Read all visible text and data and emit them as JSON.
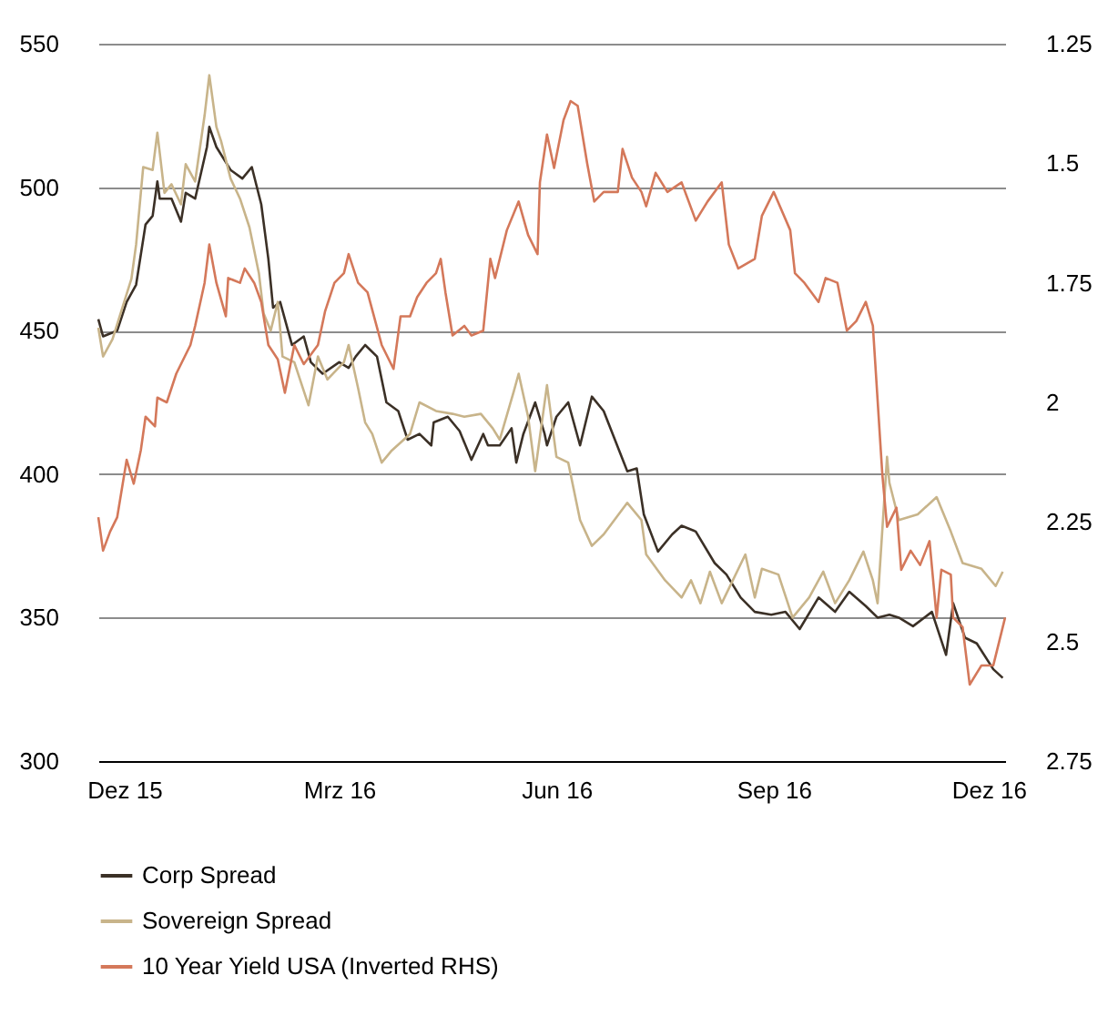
{
  "chart_data": {
    "type": "line",
    "xlim": [
      "2015-11-20",
      "2016-12-08"
    ],
    "xticks": [
      {
        "value": "2015-12-01",
        "label": "Dez 15"
      },
      {
        "value": "2016-03-01",
        "label": "Mrz 16"
      },
      {
        "value": "2016-06-01",
        "label": "Jun 16"
      },
      {
        "value": "2016-09-01",
        "label": "Sep 16"
      },
      {
        "value": "2016-12-01",
        "label": "Dez 16"
      }
    ],
    "ylim": [
      300,
      550
    ],
    "yticks": [
      300,
      350,
      400,
      450,
      500,
      550
    ],
    "y2lim": [
      2.75,
      1.25
    ],
    "y2ticks": [
      1.25,
      1.5,
      1.75,
      2,
      2.25,
      2.5,
      2.75
    ],
    "grid": "y",
    "legend": "bottom",
    "series": [
      {
        "name": "Corp Spread",
        "color": "#3b3026",
        "x": [
          "2015-11-20",
          "2015-11-22",
          "2015-11-28",
          "2015-12-02",
          "2015-12-06",
          "2015-12-10",
          "2015-12-13",
          "2015-12-15",
          "2015-12-16",
          "2015-12-21",
          "2015-12-25",
          "2015-12-27",
          "2015-12-31",
          "2016-01-05",
          "2016-01-06",
          "2016-01-09",
          "2016-01-15",
          "2016-01-20",
          "2016-01-24",
          "2016-01-28",
          "2016-01-31",
          "2016-02-02",
          "2016-02-05",
          "2016-02-10",
          "2016-02-15",
          "2016-02-18",
          "2016-02-23",
          "2016-03-01",
          "2016-03-05",
          "2016-03-08",
          "2016-03-12",
          "2016-03-17",
          "2016-03-21",
          "2016-03-26",
          "2016-03-30",
          "2016-04-04",
          "2016-04-09",
          "2016-04-10",
          "2016-04-16",
          "2016-04-21",
          "2016-04-26",
          "2016-05-01",
          "2016-05-03",
          "2016-05-08",
          "2016-05-13",
          "2016-05-15",
          "2016-05-18",
          "2016-05-23",
          "2016-05-27",
          "2016-05-28",
          "2016-06-01",
          "2016-06-06",
          "2016-06-11",
          "2016-06-16",
          "2016-06-21",
          "2016-07-01",
          "2016-07-05",
          "2016-07-08",
          "2016-07-14",
          "2016-07-20",
          "2016-07-24",
          "2016-07-30",
          "2016-08-07",
          "2016-08-12",
          "2016-08-18",
          "2016-08-24",
          "2016-08-31",
          "2016-09-06",
          "2016-09-12",
          "2016-09-20",
          "2016-09-27",
          "2016-10-03",
          "2016-10-10",
          "2016-10-15",
          "2016-10-20",
          "2016-10-24",
          "2016-10-30",
          "2016-11-07",
          "2016-11-13",
          "2016-11-16",
          "2016-11-21",
          "2016-11-26",
          "2016-12-03",
          "2016-12-07"
        ],
        "values": [
          454,
          448,
          450,
          460,
          466,
          487,
          490,
          502,
          496,
          496,
          488,
          498,
          496,
          514,
          521,
          514,
          506,
          503,
          507,
          494,
          475,
          458,
          460,
          445,
          448,
          439,
          435,
          439,
          437,
          441,
          445,
          441,
          425,
          422,
          412,
          414,
          410,
          418,
          420,
          415,
          405,
          414,
          410,
          410,
          416,
          404,
          414,
          425,
          414,
          410,
          420,
          425,
          410,
          427,
          422,
          401,
          402,
          386,
          373,
          379,
          382,
          380,
          369,
          365,
          357,
          352,
          351,
          352,
          346,
          357,
          352,
          359,
          354,
          350,
          351,
          350,
          347,
          352,
          337,
          355,
          343,
          341,
          332,
          329
        ]
      },
      {
        "name": "Sovereign Spread",
        "color": "#c8b48a",
        "x": [
          "2015-11-20",
          "2015-11-22",
          "2015-11-26",
          "2015-12-04",
          "2015-12-06",
          "2015-12-09",
          "2015-12-13",
          "2015-12-15",
          "2015-12-18",
          "2015-12-21",
          "2015-12-25",
          "2015-12-27",
          "2015-12-31",
          "2016-01-04",
          "2016-01-06",
          "2016-01-09",
          "2016-01-11",
          "2016-01-15",
          "2016-01-19",
          "2016-01-23",
          "2016-01-27",
          "2016-01-29",
          "2016-02-01",
          "2016-02-04",
          "2016-02-06",
          "2016-02-11",
          "2016-02-17",
          "2016-02-21",
          "2016-02-25",
          "2016-03-03",
          "2016-03-05",
          "2016-03-09",
          "2016-03-12",
          "2016-03-15",
          "2016-03-19",
          "2016-03-23",
          "2016-03-31",
          "2016-04-04",
          "2016-04-11",
          "2016-04-18",
          "2016-04-23",
          "2016-04-30",
          "2016-05-05",
          "2016-05-08",
          "2016-05-14",
          "2016-05-16",
          "2016-05-20",
          "2016-05-23",
          "2016-05-28",
          "2016-06-01",
          "2016-06-06",
          "2016-06-11",
          "2016-06-16",
          "2016-06-21",
          "2016-07-01",
          "2016-07-07",
          "2016-07-09",
          "2016-07-17",
          "2016-07-24",
          "2016-07-28",
          "2016-08-01",
          "2016-08-05",
          "2016-08-10",
          "2016-08-20",
          "2016-08-24",
          "2016-08-27",
          "2016-09-03",
          "2016-09-09",
          "2016-09-16",
          "2016-09-22",
          "2016-09-27",
          "2016-10-03",
          "2016-10-09",
          "2016-10-13",
          "2016-10-15",
          "2016-10-19",
          "2016-10-20",
          "2016-10-24",
          "2016-11-01",
          "2016-11-09",
          "2016-11-15",
          "2016-11-20",
          "2016-11-28",
          "2016-12-04",
          "2016-12-07"
        ],
        "values": [
          451,
          441,
          447,
          468,
          480,
          507,
          506,
          519,
          498,
          501,
          494,
          508,
          502,
          525,
          539,
          521,
          516,
          503,
          496,
          486,
          470,
          456,
          450,
          460,
          441,
          439,
          424,
          441,
          433,
          439,
          445,
          430,
          418,
          414,
          404,
          408,
          414,
          425,
          422,
          421,
          420,
          421,
          416,
          412,
          429,
          435,
          420,
          401,
          431,
          406,
          404,
          384,
          375,
          379,
          390,
          384,
          372,
          363,
          357,
          363,
          355,
          366,
          355,
          372,
          357,
          367,
          365,
          350,
          357,
          366,
          355,
          363,
          373,
          363,
          355,
          406,
          397,
          384,
          386,
          392,
          380,
          369,
          367,
          361,
          366
        ]
      },
      {
        "name": "10 Year Yield USA (Inverted RHS)",
        "color": "#d4785a",
        "axis": "y2",
        "x": [
          "2015-11-20",
          "2015-11-22",
          "2015-11-25",
          "2015-11-28",
          "2015-12-02",
          "2015-12-05",
          "2015-12-08",
          "2015-12-10",
          "2015-12-14",
          "2015-12-15",
          "2015-12-19",
          "2015-12-23",
          "2015-12-25",
          "2015-12-29",
          "2015-12-31",
          "2016-01-04",
          "2016-01-06",
          "2016-01-09",
          "2016-01-13",
          "2016-01-14",
          "2016-01-19",
          "2016-01-21",
          "2016-01-25",
          "2016-01-28",
          "2016-01-31",
          "2016-02-04",
          "2016-02-07",
          "2016-02-11",
          "2016-02-15",
          "2016-02-21",
          "2016-02-24",
          "2016-02-28",
          "2016-03-03",
          "2016-03-05",
          "2016-03-09",
          "2016-03-13",
          "2016-03-19",
          "2016-03-24",
          "2016-03-27",
          "2016-03-31",
          "2016-04-03",
          "2016-04-07",
          "2016-04-11",
          "2016-04-13",
          "2016-04-15",
          "2016-04-18",
          "2016-04-23",
          "2016-04-26",
          "2016-05-01",
          "2016-05-04",
          "2016-05-06",
          "2016-05-11",
          "2016-05-16",
          "2016-05-20",
          "2016-05-24",
          "2016-05-25",
          "2016-05-28",
          "2016-05-31",
          "2016-06-04",
          "2016-06-07",
          "2016-06-10",
          "2016-06-14",
          "2016-06-17",
          "2016-06-21",
          "2016-06-27",
          "2016-06-29",
          "2016-07-03",
          "2016-07-07",
          "2016-07-09",
          "2016-07-13",
          "2016-07-18",
          "2016-07-24",
          "2016-07-30",
          "2016-08-04",
          "2016-08-10",
          "2016-08-13",
          "2016-08-17",
          "2016-08-24",
          "2016-08-27",
          "2016-09-01",
          "2016-09-08",
          "2016-09-10",
          "2016-09-14",
          "2016-09-20",
          "2016-09-23",
          "2016-09-28",
          "2016-10-02",
          "2016-10-06",
          "2016-10-10",
          "2016-10-13",
          "2016-10-17",
          "2016-10-19",
          "2016-10-23",
          "2016-10-25",
          "2016-10-29",
          "2016-11-02",
          "2016-11-06",
          "2016-11-09",
          "2016-11-11",
          "2016-11-15",
          "2016-11-16",
          "2016-11-20",
          "2016-11-23",
          "2016-11-28",
          "2016-12-03",
          "2016-12-08"
        ],
        "values": [
          2.24,
          2.31,
          2.27,
          2.24,
          2.12,
          2.17,
          2.1,
          2.03,
          2.05,
          1.99,
          2.0,
          1.94,
          1.92,
          1.88,
          1.84,
          1.75,
          1.67,
          1.75,
          1.82,
          1.74,
          1.75,
          1.72,
          1.75,
          1.79,
          1.88,
          1.91,
          1.98,
          1.88,
          1.92,
          1.88,
          1.81,
          1.75,
          1.73,
          1.69,
          1.75,
          1.77,
          1.88,
          1.93,
          1.82,
          1.82,
          1.78,
          1.75,
          1.73,
          1.7,
          1.77,
          1.86,
          1.84,
          1.86,
          1.85,
          1.7,
          1.74,
          1.64,
          1.58,
          1.65,
          1.69,
          1.54,
          1.44,
          1.51,
          1.41,
          1.37,
          1.38,
          1.5,
          1.58,
          1.56,
          1.56,
          1.47,
          1.53,
          1.56,
          1.59,
          1.52,
          1.56,
          1.54,
          1.62,
          1.58,
          1.54,
          1.67,
          1.72,
          1.7,
          1.61,
          1.56,
          1.64,
          1.73,
          1.75,
          1.79,
          1.74,
          1.75,
          1.85,
          1.83,
          1.79,
          1.84,
          2.15,
          2.26,
          2.22,
          2.35,
          2.31,
          2.34,
          2.29,
          2.45,
          2.35,
          2.36,
          2.45,
          2.47,
          2.59,
          2.55,
          2.55,
          2.45
        ]
      }
    ]
  }
}
